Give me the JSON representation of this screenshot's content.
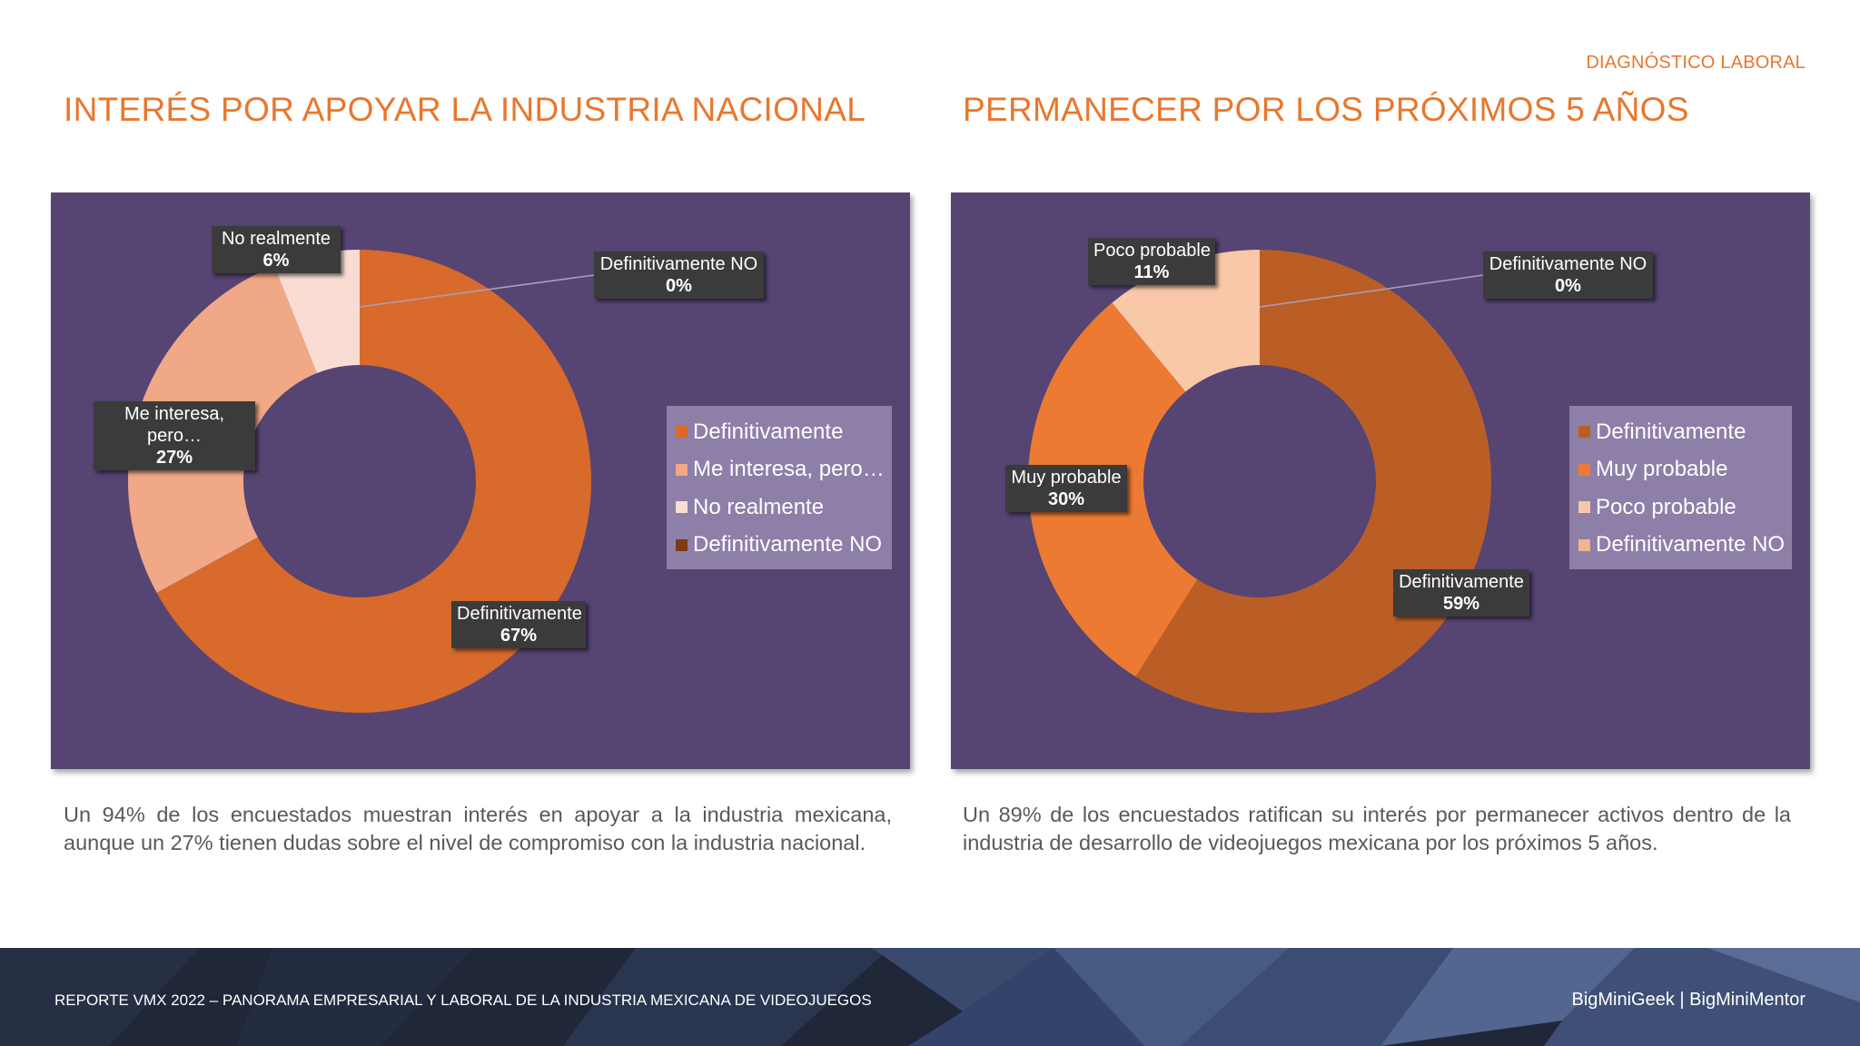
{
  "header": {
    "section_tag": "DIAGNÓSTICO LABORAL"
  },
  "chart_data": [
    {
      "type": "donut",
      "title": "INTERÉS POR APOYAR LA INDUSTRIA NACIONAL",
      "categories": [
        "Definitivamente",
        "Me interesa, pero…",
        "No realmente",
        "Definitivamente NO"
      ],
      "values": [
        67,
        27,
        6,
        0
      ],
      "unit": "%",
      "colors": [
        "#d86a2b",
        "#f0a887",
        "#f9ddd3",
        "#7a3a18"
      ],
      "data_labels": [
        {
          "name": "Definitivamente",
          "value": "67%"
        },
        {
          "name": "Me interesa, pero…",
          "value": "27%"
        },
        {
          "name": "No realmente",
          "value": "6%"
        },
        {
          "name": "Definitivamente NO",
          "value": "0%"
        }
      ],
      "legend": "right",
      "caption": "Un 94% de los encuestados muestran interés en apoyar a la industria mexicana, aunque un 27% tienen dudas sobre el nivel de compromiso con la industria nacional."
    },
    {
      "type": "donut",
      "title": "PERMANECER POR LOS PRÓXIMOS 5 AÑOS",
      "categories": [
        "Definitivamente",
        "Muy probable",
        "Poco probable",
        "Definitivamente NO"
      ],
      "values": [
        59,
        30,
        11,
        0
      ],
      "unit": "%",
      "colors": [
        "#bb5e26",
        "#ec7a33",
        "#f8c8a8",
        "#f1b592"
      ],
      "data_labels": [
        {
          "name": "Definitivamente",
          "value": "59%"
        },
        {
          "name": "Muy probable",
          "value": "30%"
        },
        {
          "name": "Poco probable",
          "value": "11%"
        },
        {
          "name": "Definitivamente NO",
          "value": "0%"
        }
      ],
      "legend": "right",
      "caption": "Un 89% de los encuestados ratifican su interés por permanecer activos dentro de la industria de desarrollo de videojuegos mexicana por los próximos 5 años."
    }
  ],
  "footer": {
    "report_title": "REPORTE VMX 2022 – PANORAMA EMPRESARIAL Y LABORAL DE LA INDUSTRIA MEXICANA DE VIDEOJUEGOS",
    "brands": "BigMiniGeek | BigMiniMentor"
  },
  "colors": {
    "accent": "#e8772e",
    "panel": "#564473",
    "legend_bg": "#8e7fa8",
    "footer_bg": "#1f2738"
  }
}
